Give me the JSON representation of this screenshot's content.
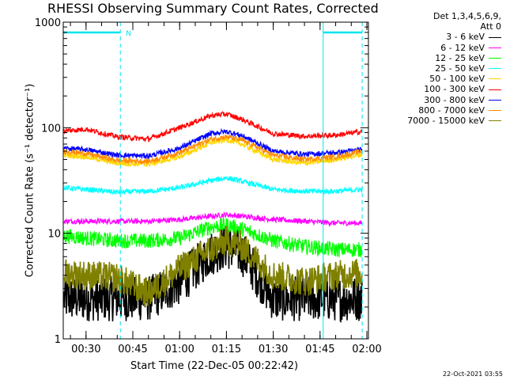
{
  "title": "RHESSI Observing Summary Count Rates, Corrected",
  "timestamp": "22-Oct-2021 03:55",
  "legend_header_1": "Det 1,3,4,5,6,9,",
  "legend_header_2": "Att 0",
  "colors": {
    "axes": "#000000",
    "night_marker": "#00e5ee"
  },
  "chart_data": {
    "type": "line",
    "title": "RHESSI Observing Summary Count Rates, Corrected",
    "xlabel": "Start Time (22-Dec-05 00:22:42)",
    "ylabel": "Corrected Count Rate (s⁻¹ detector⁻¹)",
    "x_range": [
      "00:22:42",
      "02:00:30"
    ],
    "y_scale": "log",
    "ylim": [
      1,
      1000
    ],
    "y_ticks": [
      {
        "value": 1,
        "label": "1"
      },
      {
        "value": 10,
        "label": "10"
      },
      {
        "value": 100,
        "label": "100"
      },
      {
        "value": 1000,
        "label": "1000"
      }
    ],
    "x_ticks": [
      "00:30",
      "00:45",
      "01:00",
      "01:15",
      "01:30",
      "01:45",
      "02:00"
    ],
    "x_tick_minutes": [
      30,
      45,
      60,
      75,
      90,
      105,
      120
    ],
    "annotation": "N",
    "night_markers_minutes": [
      41,
      106
    ],
    "night_dashed_minutes": [
      41,
      118.5
    ],
    "night_bars": [
      [
        22.7,
        41
      ],
      [
        106,
        118.5
      ]
    ],
    "data_gap_end_minutes": 118.5,
    "x": [
      22.7,
      30,
      40,
      50,
      60,
      70,
      75,
      80,
      90,
      100,
      110,
      118.5
    ],
    "series": [
      {
        "name": "3 - 6 keV",
        "color": "#000000",
        "values": [
          2.4,
          2.4,
          2.4,
          2.4,
          3.4,
          6.5,
          7.5,
          6.5,
          2.4,
          2.4,
          2.4,
          2.4
        ]
      },
      {
        "name": "6 - 12 keV",
        "color": "#ff00ff",
        "values": [
          13,
          13,
          13,
          13,
          13.5,
          14.5,
          15,
          14.5,
          13.5,
          13,
          12.5,
          12.5
        ]
      },
      {
        "name": "12 - 25 keV",
        "color": "#00ff00",
        "values": [
          9.5,
          9,
          8.5,
          8.5,
          9,
          11.5,
          12,
          11,
          8.5,
          7.5,
          7,
          7
        ]
      },
      {
        "name": "25 - 50 keV",
        "color": "#00ffff",
        "values": [
          27,
          26,
          24.5,
          25,
          27,
          31.5,
          33.5,
          31,
          26,
          25,
          25,
          26
        ]
      },
      {
        "name": "50 - 100 keV",
        "color": "#ffd700",
        "values": [
          55,
          53,
          46,
          45,
          53,
          72,
          77,
          70,
          50,
          46,
          50,
          56
        ]
      },
      {
        "name": "100 - 300 keV",
        "color": "#ff0000",
        "values": [
          93,
          97,
          82,
          78,
          100,
          130,
          135,
          120,
          88,
          83,
          85,
          92
        ]
      },
      {
        "name": "300 - 800 keV",
        "color": "#0000ff",
        "values": [
          64,
          62,
          55,
          54,
          64,
          88,
          92,
          84,
          60,
          56,
          58,
          62
        ]
      },
      {
        "name": "800 - 7000 keV",
        "color": "#ff8c00",
        "values": [
          60,
          57,
          49,
          48,
          58,
          78,
          82,
          76,
          55,
          50,
          53,
          60
        ]
      },
      {
        "name": "7000 - 15000 keV",
        "color": "#808000",
        "values": [
          4.2,
          4,
          3.8,
          2.7,
          4.6,
          7,
          8.5,
          7.5,
          4,
          3.5,
          4,
          4.2
        ]
      }
    ]
  }
}
